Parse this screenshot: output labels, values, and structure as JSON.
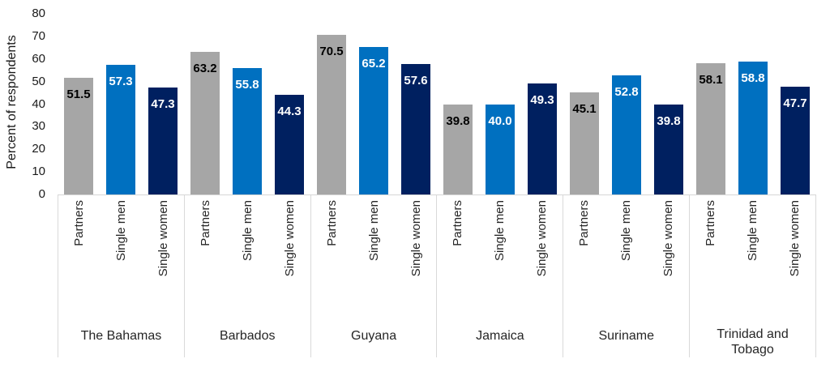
{
  "chart_data": {
    "type": "bar",
    "title": "",
    "ylabel": "Percent of respondents",
    "xlabel": "",
    "ylim": [
      0,
      80
    ],
    "yticks": [
      0,
      10,
      20,
      30,
      40,
      50,
      60,
      70,
      80
    ],
    "grid": false,
    "legend": "none (series labeled on x-axis under each bar)",
    "categories": [
      "The Bahamas",
      "Barbados",
      "Guyana",
      "Jamaica",
      "Suriname",
      "Trinidad and Tobago"
    ],
    "series_labels": [
      "Partners",
      "Single men",
      "Single women"
    ],
    "series": [
      {
        "name": "Partners",
        "color": "#A6A6A6",
        "label_color": "#000000",
        "values": [
          51.5,
          63.2,
          70.5,
          39.8,
          45.1,
          58.1
        ]
      },
      {
        "name": "Single men",
        "color": "#0070C0",
        "label_color": "#FFFFFF",
        "values": [
          57.3,
          55.8,
          65.2,
          40.0,
          52.8,
          58.8
        ]
      },
      {
        "name": "Single women",
        "color": "#002060",
        "label_color": "#FFFFFF",
        "values": [
          47.3,
          44.3,
          57.6,
          49.3,
          39.8,
          47.7
        ]
      }
    ],
    "value_label_decimals": 1,
    "colors": {
      "axis_line": "#D6D6D6",
      "band_divider": "#D9D9D9",
      "text": "#1A1A1A",
      "background": "#FFFFFF"
    }
  }
}
